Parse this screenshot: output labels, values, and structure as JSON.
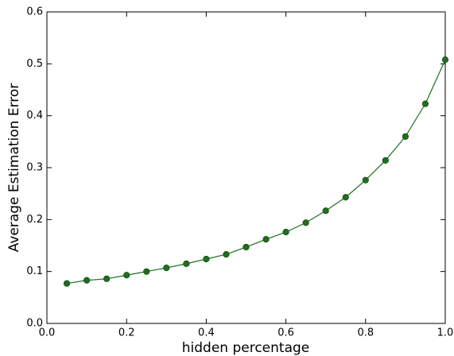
{
  "chart_data": {
    "type": "line",
    "xlabel": "hidden percentage",
    "ylabel": "Average Estimation Error",
    "x": [
      0.05,
      0.1,
      0.15,
      0.2,
      0.25,
      0.3,
      0.35,
      0.4,
      0.45,
      0.5,
      0.55,
      0.6,
      0.65,
      0.7,
      0.75,
      0.8,
      0.85,
      0.9,
      0.95,
      1.0
    ],
    "series": [
      {
        "color": "#1f6e1f",
        "values": [
          0.077,
          0.083,
          0.086,
          0.093,
          0.1,
          0.107,
          0.115,
          0.124,
          0.133,
          0.147,
          0.162,
          0.176,
          0.194,
          0.217,
          0.243,
          0.276,
          0.314,
          0.36,
          0.423,
          0.508
        ]
      }
    ],
    "xlim": [
      0,
      1
    ],
    "ylim": [
      0,
      0.6
    ],
    "xticks": [
      {
        "value": 0,
        "label": "0.0"
      },
      0.2,
      0.4,
      0.6,
      0.8,
      {
        "value": 1,
        "label": "1.0"
      }
    ],
    "yticks": [
      {
        "value": 0,
        "label": "0.0"
      },
      0.1,
      0.2,
      0.3,
      0.4,
      0.5,
      0.6
    ]
  }
}
